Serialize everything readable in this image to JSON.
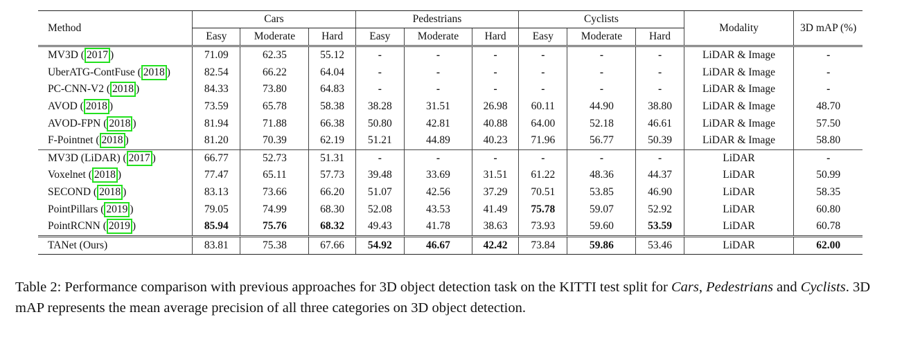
{
  "table": {
    "method_header": "Method",
    "groups": [
      "Cars",
      "Pedestrians",
      "Cyclists"
    ],
    "sub_headers": [
      "Easy",
      "Moderate",
      "Hard"
    ],
    "modality_header": "Modality",
    "map_header": "3D mAP (%)",
    "highlight_color": "#22e01e",
    "sections": [
      [
        {
          "name": "MV3D",
          "year": "2017",
          "values": [
            "71.09",
            "62.35",
            "55.12",
            "-",
            "-",
            "-",
            "-",
            "-",
            "-"
          ],
          "bold": [],
          "modality": "LiDAR & Image",
          "map": "-",
          "map_bold": false
        },
        {
          "name": "UberATG-ContFuse",
          "year": "2018",
          "values": [
            "82.54",
            "66.22",
            "64.04",
            "-",
            "-",
            "-",
            "-",
            "-",
            "-"
          ],
          "bold": [],
          "modality": "LiDAR & Image",
          "map": "-",
          "map_bold": false
        },
        {
          "name": "PC-CNN-V2",
          "year": "2018",
          "values": [
            "84.33",
            "73.80",
            "64.83",
            "-",
            "-",
            "-",
            "-",
            "-",
            "-"
          ],
          "bold": [],
          "modality": "LiDAR & Image",
          "map": "-",
          "map_bold": false
        },
        {
          "name": "AVOD",
          "year": "2018",
          "values": [
            "73.59",
            "65.78",
            "58.38",
            "38.28",
            "31.51",
            "26.98",
            "60.11",
            "44.90",
            "38.80"
          ],
          "bold": [],
          "modality": "LiDAR & Image",
          "map": "48.70",
          "map_bold": false
        },
        {
          "name": "AVOD-FPN",
          "year": "2018",
          "values": [
            "81.94",
            "71.88",
            "66.38",
            "50.80",
            "42.81",
            "40.88",
            "64.00",
            "52.18",
            "46.61"
          ],
          "bold": [],
          "modality": "LiDAR & Image",
          "map": "57.50",
          "map_bold": false
        },
        {
          "name": "F-Pointnet",
          "year": "2018",
          "values": [
            "81.20",
            "70.39",
            "62.19",
            "51.21",
            "44.89",
            "40.23",
            "71.96",
            "56.77",
            "50.39"
          ],
          "bold": [],
          "modality": "LiDAR & Image",
          "map": "58.80",
          "map_bold": false
        }
      ],
      [
        {
          "name": "MV3D (LiDAR)",
          "year": "2017",
          "values": [
            "66.77",
            "52.73",
            "51.31",
            "-",
            "-",
            "-",
            "-",
            "-",
            "-"
          ],
          "bold": [],
          "modality": "LiDAR",
          "map": "-",
          "map_bold": false
        },
        {
          "name": "Voxelnet",
          "year": "2018",
          "values": [
            "77.47",
            "65.11",
            "57.73",
            "39.48",
            "33.69",
            "31.51",
            "61.22",
            "48.36",
            "44.37"
          ],
          "bold": [],
          "modality": "LiDAR",
          "map": "50.99",
          "map_bold": false
        },
        {
          "name": "SECOND",
          "year": "2018",
          "values": [
            "83.13",
            "73.66",
            "66.20",
            "51.07",
            "42.56",
            "37.29",
            "70.51",
            "53.85",
            "46.90"
          ],
          "bold": [],
          "modality": "LiDAR",
          "map": "58.35",
          "map_bold": false
        },
        {
          "name": "PointPillars",
          "year": "2019",
          "values": [
            "79.05",
            "74.99",
            "68.30",
            "52.08",
            "43.53",
            "41.49",
            "75.78",
            "59.07",
            "52.92"
          ],
          "bold": [
            6
          ],
          "modality": "LiDAR",
          "map": "60.80",
          "map_bold": false
        },
        {
          "name": "PointRCNN",
          "year": "2019",
          "values": [
            "85.94",
            "75.76",
            "68.32",
            "49.43",
            "41.78",
            "38.63",
            "73.93",
            "59.60",
            "53.59"
          ],
          "bold": [
            0,
            1,
            2,
            8
          ],
          "modality": "LiDAR",
          "map": "60.78",
          "map_bold": false
        }
      ],
      [
        {
          "name": "TANet (Ours)",
          "year": "",
          "values": [
            "83.81",
            "75.38",
            "67.66",
            "54.92",
            "46.67",
            "42.42",
            "73.84",
            "59.86",
            "53.46"
          ],
          "bold": [
            3,
            4,
            5,
            7
          ],
          "modality": "LiDAR",
          "map": "62.00",
          "map_bold": true
        }
      ]
    ]
  },
  "caption": {
    "label": "Table 2: Performance comparison with previous approaches for 3D object detection task on the KITTI test split for ",
    "cars": "Cars",
    "comma": ",",
    "pedestrians": "Pedestrians",
    "and": " and ",
    "cyclists": "Cyclists",
    "rest": ". 3D mAP represents the mean average precision of all three categories on 3D object detection."
  }
}
